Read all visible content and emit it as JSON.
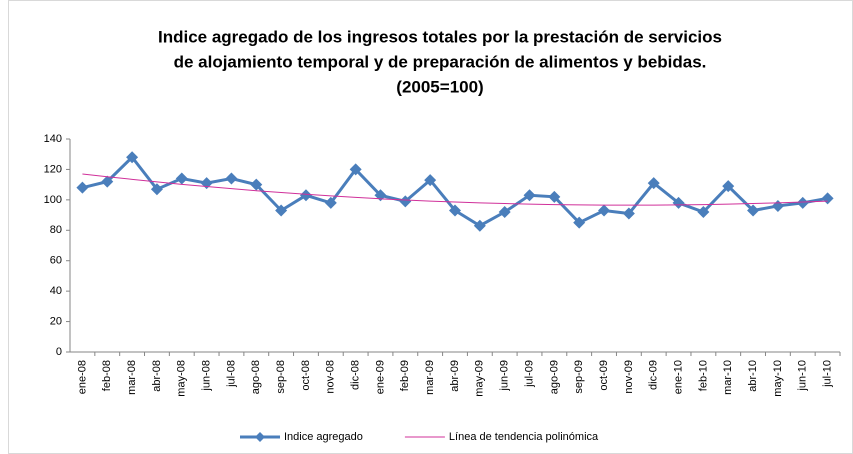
{
  "chart_data": {
    "type": "line",
    "title": [
      "Indice agregado de los ingresos totales por la prestación de servicios",
      "de alojamiento temporal y de preparación de alimentos y bebidas.",
      "(2005=100)"
    ],
    "categories": [
      "ene-08",
      "feb-08",
      "mar-08",
      "abr-08",
      "may-08",
      "jun-08",
      "jul-08",
      "ago-08",
      "sep-08",
      "oct-08",
      "nov-08",
      "dic-08",
      "ene-09",
      "feb-09",
      "mar-09",
      "abr-09",
      "may-09",
      "jun-09",
      "jul-09",
      "ago-09",
      "sep-09",
      "oct-09",
      "nov-09",
      "dic-09",
      "ene-10",
      "feb-10",
      "mar-10",
      "abr-10",
      "may-10",
      "jun-10",
      "jul-10"
    ],
    "series": [
      {
        "name": "Indice agregado",
        "color": "#4a7ebb",
        "marker": "diamond",
        "values": [
          108,
          112,
          128,
          107,
          114,
          111,
          114,
          110,
          93,
          103,
          98,
          120,
          103,
          99,
          113,
          93,
          83,
          92,
          103,
          102,
          85,
          93,
          91,
          111,
          98,
          92,
          109,
          93,
          96,
          98,
          101
        ]
      },
      {
        "name": "Línea de tendencia polinómica",
        "color": "#d0309a",
        "marker": "none",
        "values": [
          117.0,
          115.2,
          113.5,
          111.8,
          110.2,
          108.8,
          107.4,
          106.0,
          104.8,
          103.7,
          102.6,
          101.6,
          100.7,
          99.9,
          99.2,
          98.6,
          98.0,
          97.6,
          97.2,
          96.9,
          96.7,
          96.5,
          96.5,
          96.5,
          96.7,
          96.9,
          97.2,
          97.6,
          98.0,
          98.6,
          99.2
        ]
      }
    ],
    "ylim": [
      0,
      140
    ],
    "yticks": [
      0,
      20,
      40,
      60,
      80,
      100,
      120,
      140
    ],
    "grid": false,
    "legend": "bottom"
  }
}
